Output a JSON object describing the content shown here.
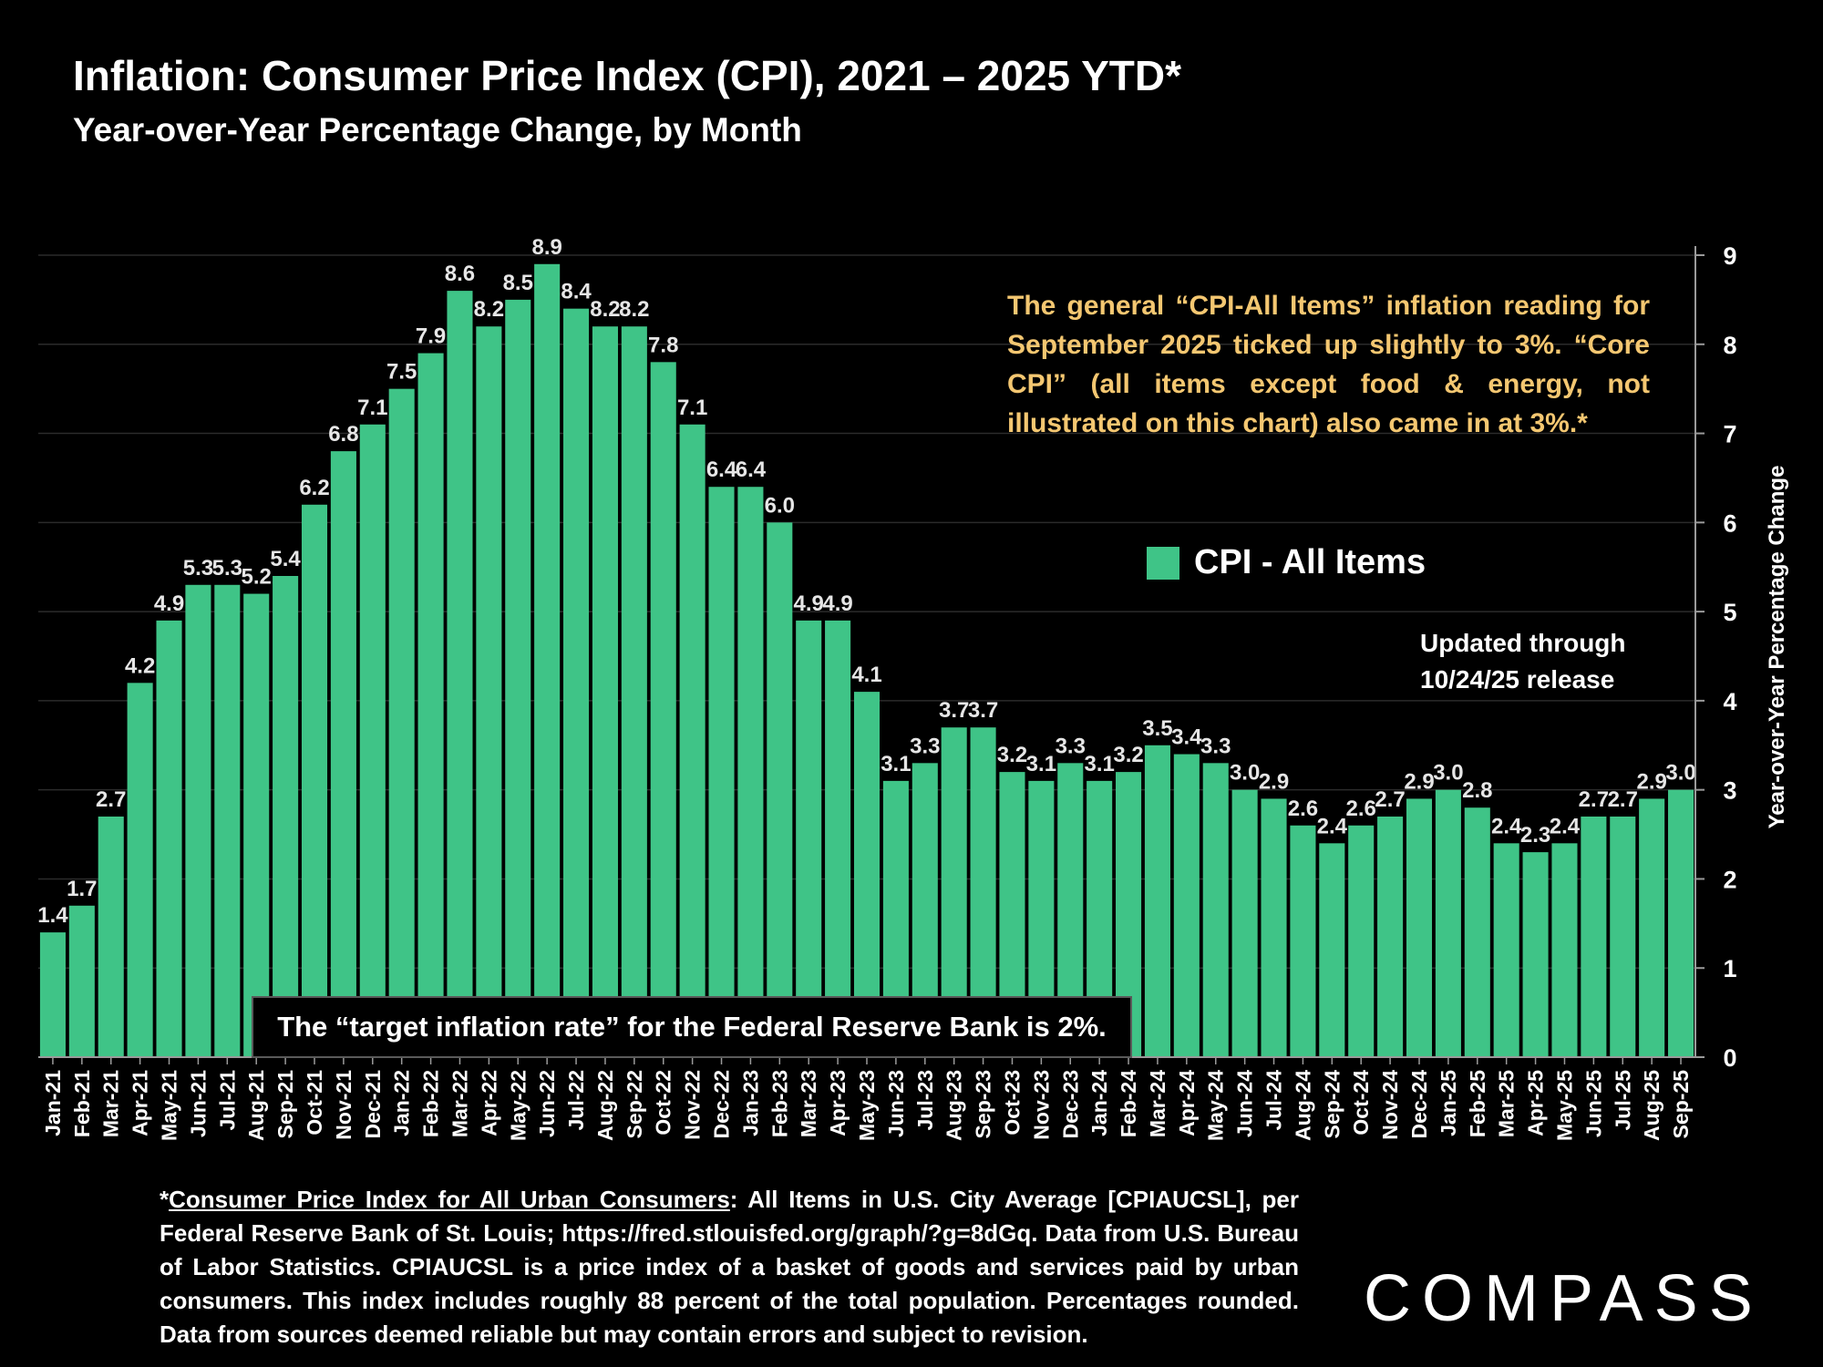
{
  "header": {
    "title": "Inflation: Consumer Price Index (CPI), 2021 – 2025 YTD*",
    "subtitle": "Year-over-Year Percentage Change, by Month"
  },
  "annotation": {
    "lines": [
      "The general “CPI-All Items” inflation reading",
      "for September 2025 ticked up slightly to 3%.",
      "“Core CPI” (all items except food & energy, not",
      "illustrated on this chart) also came in at 3%.*"
    ]
  },
  "legend": {
    "label": "CPI - All Items"
  },
  "updated": {
    "line1": "Updated through",
    "line2": "10/24/25 release"
  },
  "target_note": "The “target inflation rate” for the Federal Reserve Bank is 2%.",
  "footnote": {
    "asterisk": "*",
    "source_name": "Consumer Price Index for All Urban Consumers",
    "text": ": All Items in U.S. City Average [CPIAUCSL], per Federal Reserve Bank of St. Louis; https://fred.stlouisfed.org/graph/?g=8dGq. Data from U.S. Bureau of Labor Statistics. CPIAUCSL is a price index of a basket of goods and services paid by urban consumers. This index includes roughly 88 percent of the total population. Percentages rounded. Data from sources deemed reliable but may contain errors and subject to revision."
  },
  "logo": {
    "text": "COMPASS"
  },
  "colors": {
    "bar": "#3fc487",
    "annotation": "#f4c771",
    "background": "#000000"
  },
  "chart_data": {
    "type": "bar",
    "title": "Inflation: Consumer Price Index (CPI), 2021 – 2025 YTD*",
    "subtitle": "Year-over-Year Percentage Change, by Month",
    "ylabel": "Year-over-Year Percentage Change",
    "y_axis_side": "right",
    "ylim": [
      0,
      9
    ],
    "yticks": [
      0,
      1,
      2,
      3,
      4,
      5,
      6,
      7,
      8,
      9
    ],
    "grid": true,
    "legend_position": "right",
    "categories": [
      "Jan-21",
      "Feb-21",
      "Mar-21",
      "Apr-21",
      "May-21",
      "Jun-21",
      "Jul-21",
      "Aug-21",
      "Sep-21",
      "Oct-21",
      "Nov-21",
      "Dec-21",
      "Jan-22",
      "Feb-22",
      "Mar-22",
      "Apr-22",
      "May-22",
      "Jun-22",
      "Jul-22",
      "Aug-22",
      "Sep-22",
      "Oct-22",
      "Nov-22",
      "Dec-22",
      "Jan-23",
      "Feb-23",
      "Mar-23",
      "Apr-23",
      "May-23",
      "Jun-23",
      "Jul-23",
      "Aug-23",
      "Sep-23",
      "Oct-23",
      "Nov-23",
      "Dec-23",
      "Jan-24",
      "Feb-24",
      "Mar-24",
      "Apr-24",
      "May-24",
      "Jun-24",
      "Jul-24",
      "Aug-24",
      "Sep-24",
      "Oct-24",
      "Nov-24",
      "Dec-24",
      "Jan-25",
      "Feb-25",
      "Mar-25",
      "Apr-25",
      "May-25",
      "Jun-25",
      "Jul-25",
      "Aug-25",
      "Sep-25"
    ],
    "series": [
      {
        "name": "CPI - All Items",
        "values": [
          1.4,
          1.7,
          2.7,
          4.2,
          4.9,
          5.3,
          5.3,
          5.2,
          5.4,
          6.2,
          6.8,
          7.1,
          7.5,
          7.9,
          8.6,
          8.2,
          8.5,
          8.9,
          8.4,
          8.2,
          8.2,
          7.8,
          7.1,
          6.4,
          6.4,
          6.0,
          4.9,
          4.9,
          4.1,
          3.1,
          3.3,
          3.7,
          3.7,
          3.2,
          3.1,
          3.3,
          3.1,
          3.2,
          3.5,
          3.4,
          3.3,
          3.0,
          2.9,
          2.6,
          2.4,
          2.6,
          2.7,
          2.9,
          3.0,
          2.8,
          2.4,
          2.3,
          2.4,
          2.7,
          2.7,
          2.9,
          3.0
        ],
        "labels": [
          "1.4",
          "1.7",
          "2.7",
          "4.2",
          "4.9",
          "5.3",
          "5.3",
          "5.2",
          "5.4",
          "6.2",
          "6.8",
          "7.1",
          "7.5",
          "7.9",
          "8.6",
          "8.2",
          "8.5",
          "8.9",
          "8.4",
          "8.2",
          "8.2",
          "7.8",
          "7.1",
          "6.4",
          "6.4",
          "6.0",
          "4.9",
          "4.9",
          "4.1",
          "3.1",
          "3.3",
          "3.7",
          "3.7",
          "3.2",
          "3.1",
          "3.3",
          "3.1",
          "3.2",
          "3.5",
          "3.4",
          "3.3",
          "3.0",
          "2.9",
          "2.6",
          "2.4",
          "2.6",
          "2.7",
          "2.9",
          "3.0",
          "2.8",
          "2.4",
          "2.3",
          "2.4",
          "2.7",
          "2.7",
          "2.9",
          "3.0"
        ]
      }
    ]
  }
}
